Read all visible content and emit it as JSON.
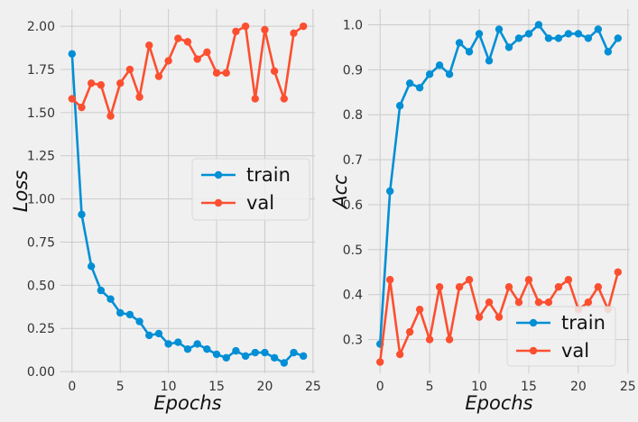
{
  "chart_data": [
    {
      "type": "line",
      "xlabel": "Epochs",
      "ylabel": "Loss",
      "xlim": [
        -1.2,
        25.2
      ],
      "ylim": [
        -0.01,
        2.1
      ],
      "xticks": [
        "0",
        "5",
        "10",
        "15",
        "20",
        "25"
      ],
      "yticks": [
        "0.00",
        "0.25",
        "0.50",
        "0.75",
        "1.00",
        "1.25",
        "1.50",
        "1.75",
        "2.00"
      ],
      "grid": true,
      "legend_position": "center-right",
      "x": [
        0,
        1,
        2,
        3,
        4,
        5,
        6,
        7,
        8,
        9,
        10,
        11,
        12,
        13,
        14,
        15,
        16,
        17,
        18,
        19,
        20,
        21,
        22,
        23,
        24
      ],
      "series": [
        {
          "name": "train",
          "color": "#008fd5",
          "values": [
            1.84,
            0.91,
            0.61,
            0.47,
            0.42,
            0.34,
            0.33,
            0.29,
            0.21,
            0.22,
            0.16,
            0.17,
            0.13,
            0.16,
            0.13,
            0.1,
            0.08,
            0.12,
            0.09,
            0.11,
            0.11,
            0.08,
            0.05,
            0.11,
            0.09
          ]
        },
        {
          "name": "val",
          "color": "#fc4f30",
          "values": [
            1.58,
            1.53,
            1.67,
            1.66,
            1.48,
            1.67,
            1.75,
            1.59,
            1.89,
            1.71,
            1.8,
            1.93,
            1.91,
            1.81,
            1.85,
            1.73,
            1.73,
            1.97,
            2.0,
            1.58,
            1.98,
            1.74,
            1.58,
            1.96,
            2.0
          ]
        }
      ]
    },
    {
      "type": "line",
      "xlabel": "Epochs",
      "ylabel": "Acc",
      "xlim": [
        -1.2,
        25.2
      ],
      "ylim": [
        0.225,
        1.035
      ],
      "xticks": [
        "0",
        "5",
        "10",
        "15",
        "20",
        "25"
      ],
      "yticks": [
        "0.3",
        "0.4",
        "0.5",
        "0.6",
        "0.7",
        "0.8",
        "0.9",
        "1.0"
      ],
      "grid": true,
      "legend_position": "lower-right",
      "x": [
        0,
        1,
        2,
        3,
        4,
        5,
        6,
        7,
        8,
        9,
        10,
        11,
        12,
        13,
        14,
        15,
        16,
        17,
        18,
        19,
        20,
        21,
        22,
        23,
        24
      ],
      "series": [
        {
          "name": "train",
          "color": "#008fd5",
          "values": [
            0.29,
            0.63,
            0.82,
            0.87,
            0.86,
            0.89,
            0.91,
            0.89,
            0.96,
            0.94,
            0.98,
            0.92,
            0.99,
            0.95,
            0.97,
            0.98,
            1.0,
            0.97,
            0.97,
            0.98,
            0.98,
            0.97,
            0.99,
            0.94,
            0.97
          ]
        },
        {
          "name": "val",
          "color": "#fc4f30",
          "values": [
            0.25,
            0.433,
            0.267,
            0.317,
            0.367,
            0.3,
            0.417,
            0.3,
            0.417,
            0.433,
            0.35,
            0.383,
            0.35,
            0.417,
            0.383,
            0.433,
            0.383,
            0.383,
            0.417,
            0.433,
            0.367,
            0.383,
            0.417,
            0.367,
            0.45
          ]
        }
      ]
    }
  ]
}
